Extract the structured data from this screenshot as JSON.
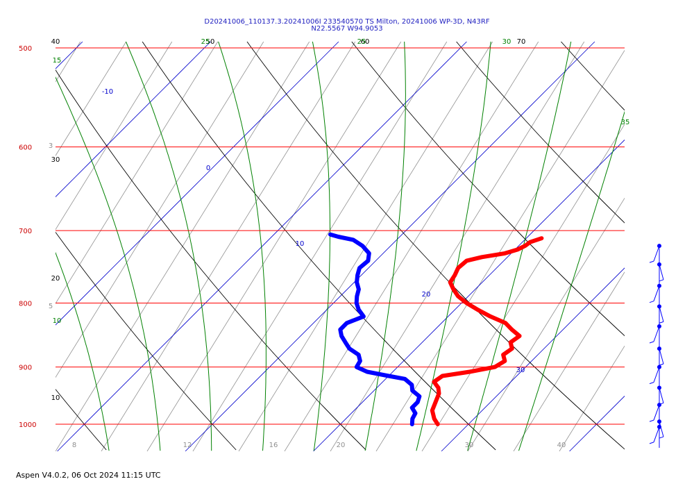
{
  "chart_data": {
    "type": "line",
    "title_line1": "D20241006_110137.3.20241006I 233540570 TS Milton, 20241006 WP-3D, N43RF",
    "title_line2": "N22.5567 W94.9053",
    "footer": "Aspen V4.0.2, 06 Oct 2024  11:15 UTC",
    "pressure_levels": [
      500,
      600,
      700,
      800,
      900,
      1000
    ],
    "temperature_ticks": [
      8,
      12,
      16,
      20,
      30,
      40
    ],
    "isotherm_labels": [
      -10,
      0,
      10,
      20,
      30
    ],
    "dry_adiabat_labels": [
      40,
      50,
      60,
      70,
      30,
      20,
      10
    ],
    "moist_adiabat_labels": [
      15,
      25,
      25,
      30,
      35,
      10
    ],
    "mixing_ratio_labels": [
      3,
      5
    ],
    "series": [
      {
        "name": "Temperature",
        "color": "#ff0000",
        "points": [
          {
            "p": 1000,
            "t": 27.6
          },
          {
            "p": 990,
            "t": 26.9
          },
          {
            "p": 975,
            "t": 26.1
          },
          {
            "p": 960,
            "t": 25.7
          },
          {
            "p": 945,
            "t": 25.3
          },
          {
            "p": 935,
            "t": 24.8
          },
          {
            "p": 925,
            "t": 24.0
          },
          {
            "p": 915,
            "t": 24.2
          },
          {
            "p": 908,
            "t": 26.0
          },
          {
            "p": 900,
            "t": 27.6
          },
          {
            "p": 890,
            "t": 27.9
          },
          {
            "p": 880,
            "t": 27.3
          },
          {
            "p": 870,
            "t": 27.5
          },
          {
            "p": 860,
            "t": 26.9
          },
          {
            "p": 850,
            "t": 27.1
          },
          {
            "p": 840,
            "t": 26.0
          },
          {
            "p": 830,
            "t": 25.0
          },
          {
            "p": 820,
            "t": 23.3
          },
          {
            "p": 810,
            "t": 21.8
          },
          {
            "p": 800,
            "t": 20.4
          },
          {
            "p": 790,
            "t": 19.2
          },
          {
            "p": 780,
            "t": 18.3
          },
          {
            "p": 770,
            "t": 17.5
          },
          {
            "p": 760,
            "t": 17.3
          },
          {
            "p": 750,
            "t": 17.0
          },
          {
            "p": 740,
            "t": 17.1
          },
          {
            "p": 735,
            "t": 18.0
          },
          {
            "p": 730,
            "t": 19.5
          },
          {
            "p": 725,
            "t": 20.2
          },
          {
            "p": 720,
            "t": 20.5
          },
          {
            "p": 715,
            "t": 20.6
          },
          {
            "p": 710,
            "t": 21.2
          }
        ]
      },
      {
        "name": "Dew point",
        "color": "#0000ff",
        "points": [
          {
            "p": 1000,
            "t": 25.6
          },
          {
            "p": 990,
            "t": 25.2
          },
          {
            "p": 980,
            "t": 25.0
          },
          {
            "p": 970,
            "t": 24.3
          },
          {
            "p": 960,
            "t": 24.3
          },
          {
            "p": 950,
            "t": 24.0
          },
          {
            "p": 940,
            "t": 23.0
          },
          {
            "p": 930,
            "t": 22.5
          },
          {
            "p": 920,
            "t": 21.5
          },
          {
            "p": 915,
            "t": 20.0
          },
          {
            "p": 908,
            "t": 18.0
          },
          {
            "p": 900,
            "t": 16.8
          },
          {
            "p": 890,
            "t": 16.6
          },
          {
            "p": 880,
            "t": 16.0
          },
          {
            "p": 870,
            "t": 14.8
          },
          {
            "p": 860,
            "t": 14.0
          },
          {
            "p": 850,
            "t": 13.2
          },
          {
            "p": 840,
            "t": 12.6
          },
          {
            "p": 830,
            "t": 12.6
          },
          {
            "p": 820,
            "t": 13.4
          },
          {
            "p": 810,
            "t": 12.5
          },
          {
            "p": 800,
            "t": 11.8
          },
          {
            "p": 790,
            "t": 11.3
          },
          {
            "p": 780,
            "t": 10.9
          },
          {
            "p": 770,
            "t": 10.2
          },
          {
            "p": 760,
            "t": 9.7
          },
          {
            "p": 750,
            "t": 9.3
          },
          {
            "p": 740,
            "t": 9.4
          },
          {
            "p": 730,
            "t": 8.9
          },
          {
            "p": 720,
            "t": 7.8
          },
          {
            "p": 712,
            "t": 6.6
          },
          {
            "p": 708,
            "t": 5.2
          },
          {
            "p": 705,
            "t": 4.4
          }
        ]
      }
    ],
    "wind_barb_levels": [
      720,
      745,
      775,
      805,
      835,
      870,
      900,
      935,
      965,
      995,
      1005
    ],
    "colors": {
      "isobar": "#ff0000",
      "isotherm": "#0000cc",
      "dry_adiabat": "#000000",
      "moist_adiabat": "#008000",
      "mixing_ratio": "#909090",
      "title": "#2020c0"
    }
  }
}
